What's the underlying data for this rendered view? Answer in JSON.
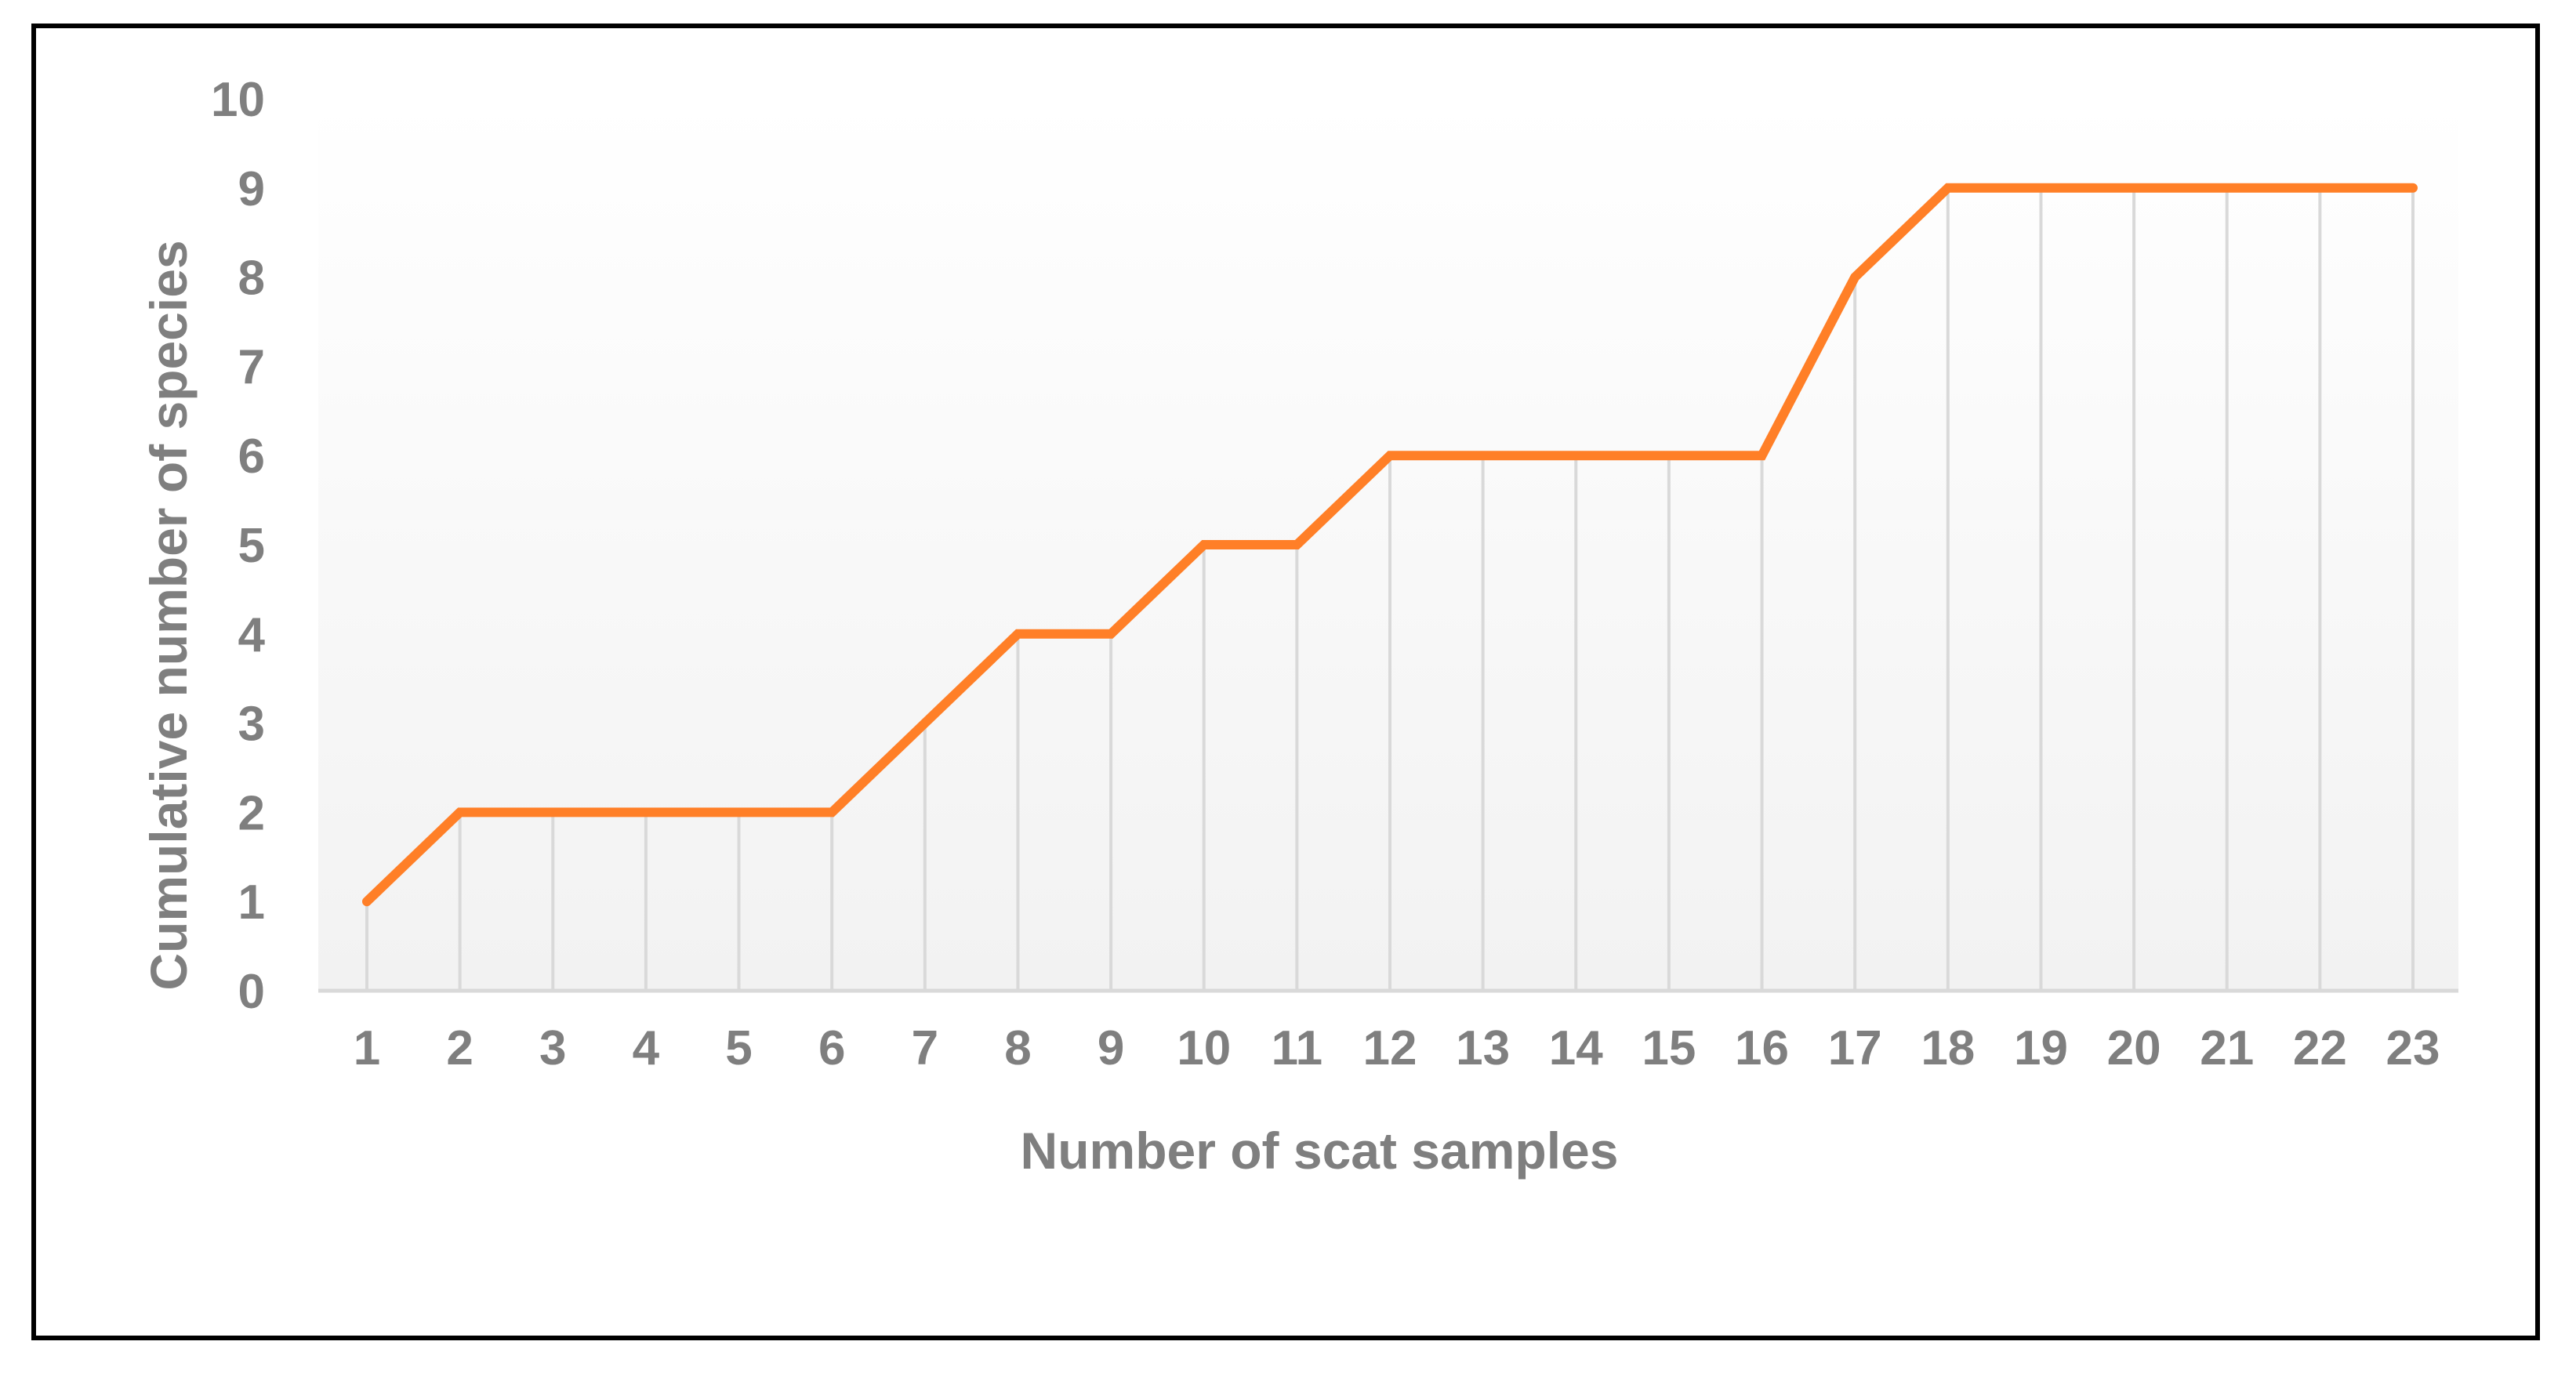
{
  "chart_data": {
    "type": "line",
    "title": "",
    "xlabel": "Number of scat samples",
    "ylabel": "Cumulative number of species",
    "x": [
      1,
      2,
      3,
      4,
      5,
      6,
      7,
      8,
      9,
      10,
      11,
      12,
      13,
      14,
      15,
      16,
      17,
      18,
      19,
      20,
      21,
      22,
      23
    ],
    "categories": [
      "1",
      "2",
      "3",
      "4",
      "5",
      "6",
      "7",
      "8",
      "9",
      "10",
      "11",
      "12",
      "13",
      "14",
      "15",
      "16",
      "17",
      "18",
      "19",
      "20",
      "21",
      "22",
      "23"
    ],
    "series": [
      {
        "values": [
          1,
          2,
          2,
          2,
          2,
          2,
          3,
          4,
          4,
          5,
          5,
          6,
          6,
          6,
          6,
          6,
          8,
          9,
          9,
          9,
          9,
          9,
          9
        ]
      }
    ],
    "ylim": [
      0,
      10
    ],
    "yticks": [
      "0",
      "1",
      "2",
      "3",
      "4",
      "5",
      "6",
      "7",
      "8",
      "9",
      "10"
    ],
    "grid": "vertical drop lines at each sample",
    "legend": "none",
    "colors": {
      "line": "#FF7F27",
      "gridline": "#D9D9D9",
      "axis": "#D9D9D9",
      "text": "#7F7F7F",
      "plot_bg_top": "#FFFFFF",
      "plot_bg_bottom": "#F2F2F2",
      "border": "#000000"
    }
  }
}
